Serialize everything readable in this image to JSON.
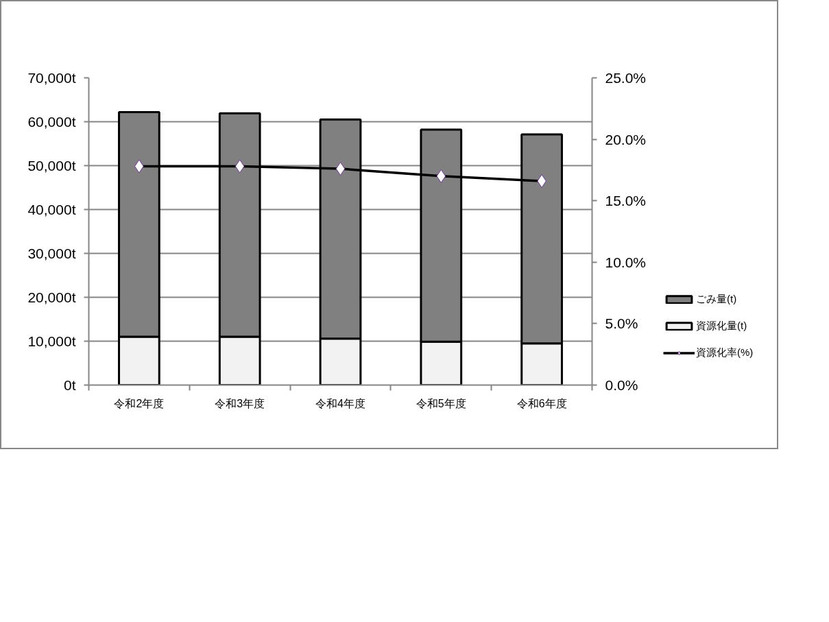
{
  "chart_data": {
    "type": "bar",
    "stacked": true,
    "categories": [
      "令和2年度",
      "令和3年度",
      "令和4年度",
      "令和5年度",
      "令和6年度"
    ],
    "series": [
      {
        "name": "資源化量(t)",
        "color": "#f2f2f2",
        "values": [
          11000,
          11000,
          10600,
          9900,
          9500
        ]
      },
      {
        "name": "ごみ量(t)",
        "color": "#808080",
        "values": [
          51200,
          50900,
          49900,
          48300,
          47600
        ]
      },
      {
        "name": "資源化率(%)",
        "type": "line",
        "axis": "y2",
        "color": "#000000",
        "marker": "diamond",
        "values": [
          17.8,
          17.8,
          17.6,
          17.0,
          16.6
        ]
      }
    ],
    "ylim": [
      0,
      70000
    ],
    "yticks": [
      {
        "value": 0,
        "label": "0t"
      },
      {
        "value": 10000,
        "label": "10,000t"
      },
      {
        "value": 20000,
        "label": "20,000t"
      },
      {
        "value": 30000,
        "label": "30,000t"
      },
      {
        "value": 40000,
        "label": "40,000t"
      },
      {
        "value": 50000,
        "label": "50,000t"
      },
      {
        "value": 60000,
        "label": "60,000t"
      },
      {
        "value": 70000,
        "label": "70,000t"
      }
    ],
    "y2lim": [
      0,
      25
    ],
    "y2ticks": [
      {
        "value": 0,
        "label": "0.0%"
      },
      {
        "value": 5,
        "label": "5.0%"
      },
      {
        "value": 10,
        "label": "10.0%"
      },
      {
        "value": 15,
        "label": "15.0%"
      },
      {
        "value": 20,
        "label": "20.0%"
      },
      {
        "value": 25,
        "label": "25.0%"
      }
    ],
    "grid": "y",
    "legend": "right"
  }
}
